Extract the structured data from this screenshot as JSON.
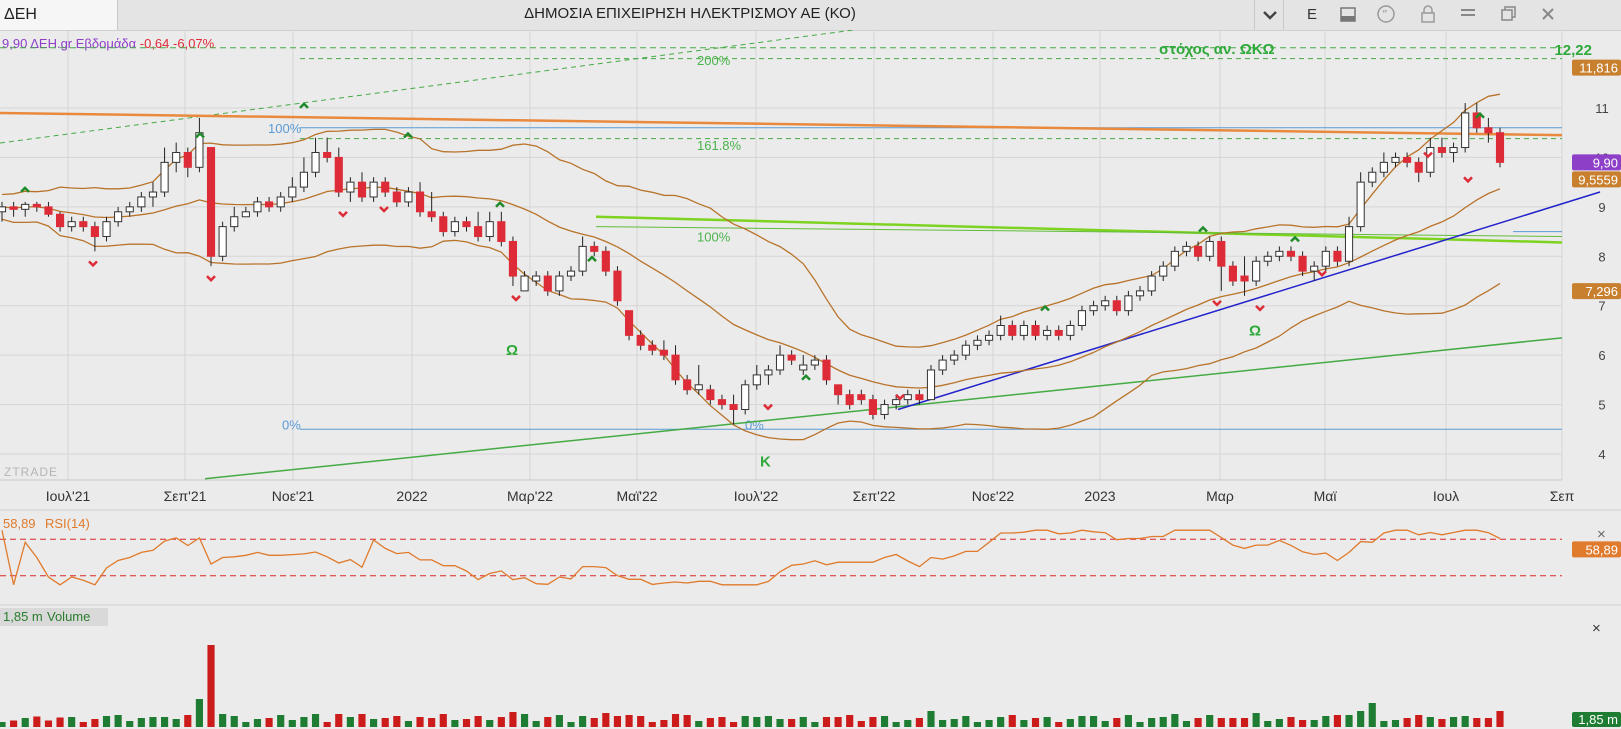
{
  "window": {
    "symbol": "ΔΕΗ",
    "title": "ΔΗΜΟΣΙΑ ΕΠΙΧΕΙΡΗΣΗ ΗΛΕΚΤΡΙΣΜΟΥ ΑΕ (ΚΟ)",
    "buttons": [
      "chevron-down-icon",
      "E",
      "panel-icon",
      "quote-icon",
      "lock-icon",
      "menu-icon",
      "restore-icon",
      "close-icon"
    ],
    "e_label": "E"
  },
  "info": {
    "price": "9,90",
    "source": "ΔΕΗ.gr",
    "period": "Εβδομάδα",
    "change": "-0,64",
    "change_pct": "-6,07%"
  },
  "colors": {
    "up": "#ffffff",
    "down": "#dd2c38",
    "bollinger": "#b8732a",
    "resistance": "#e9893d",
    "green_line": "#7ed321",
    "trend_blue": "#2222cc",
    "fib": "#5b9bd5",
    "rsi": "#e07a2c",
    "vol_up": "#1e7d32",
    "vol_down": "#cc1b1b"
  },
  "chart_data": {
    "type": "candlestick",
    "y_axis": {
      "min": 3.5,
      "max": 12.5,
      "ticks": [
        4,
        5,
        6,
        7,
        8,
        9,
        10,
        11
      ]
    },
    "x_axis": {
      "labels": [
        "Ιουλ'21",
        "Σεπ'21",
        "Νοε'21",
        "2022",
        "Μαρ'22",
        "Μαϊ'22",
        "Ιουλ'22",
        "Σεπ'22",
        "Νοε'22",
        "2023",
        "Μαρ",
        "Μαϊ",
        "Ιουλ",
        "Σεπ"
      ]
    },
    "weeks": [
      [
        "2021-06-18",
        8.9,
        9.1,
        8.7,
        9.0
      ],
      [
        "2021-06-25",
        9.0,
        9.1,
        8.8,
        8.95
      ],
      [
        "2021-07-02",
        8.95,
        9.1,
        8.8,
        9.05
      ],
      [
        "2021-07-09",
        9.05,
        9.1,
        8.9,
        9.0
      ],
      [
        "2021-07-16",
        9.0,
        9.1,
        8.8,
        8.85
      ],
      [
        "2021-07-23",
        8.85,
        8.9,
        8.5,
        8.6
      ],
      [
        "2021-07-30",
        8.6,
        8.8,
        8.5,
        8.7
      ],
      [
        "2021-08-06",
        8.7,
        8.8,
        8.5,
        8.6
      ],
      [
        "2021-08-13",
        8.6,
        8.7,
        8.1,
        8.4
      ],
      [
        "2021-08-20",
        8.4,
        8.8,
        8.3,
        8.7
      ],
      [
        "2021-08-27",
        8.7,
        9.0,
        8.6,
        8.9
      ],
      [
        "2021-09-03",
        8.9,
        9.1,
        8.8,
        9.0
      ],
      [
        "2021-09-10",
        9.0,
        9.3,
        8.9,
        9.2
      ],
      [
        "2021-09-17",
        9.2,
        9.5,
        9.0,
        9.3
      ],
      [
        "2021-09-24",
        9.3,
        10.2,
        9.2,
        9.9
      ],
      [
        "2021-10-01",
        9.9,
        10.3,
        9.7,
        10.1
      ],
      [
        "2021-10-08",
        10.1,
        10.2,
        9.6,
        9.8
      ],
      [
        "2021-10-15",
        9.8,
        10.8,
        9.7,
        10.5
      ],
      [
        "2021-10-22",
        10.2,
        10.2,
        7.8,
        8.0
      ],
      [
        "2021-10-29",
        8.0,
        8.7,
        7.9,
        8.6
      ],
      [
        "2021-11-05",
        8.6,
        9.0,
        8.5,
        8.8
      ],
      [
        "2021-11-12",
        8.8,
        9.0,
        8.8,
        8.9
      ],
      [
        "2021-11-19",
        8.9,
        9.2,
        8.8,
        9.1
      ],
      [
        "2021-11-26",
        9.1,
        9.2,
        8.9,
        9.0
      ],
      [
        "2021-12-03",
        9.0,
        9.3,
        8.9,
        9.2
      ],
      [
        "2021-12-10",
        9.2,
        9.6,
        9.1,
        9.4
      ],
      [
        "2021-12-17",
        9.4,
        10.0,
        9.3,
        9.7
      ],
      [
        "2021-12-24",
        9.7,
        10.4,
        9.6,
        10.1
      ],
      [
        "2021-12-31",
        10.1,
        10.4,
        9.9,
        10.0
      ],
      [
        "2022-01-07",
        10.0,
        10.2,
        9.2,
        9.3
      ],
      [
        "2022-01-14",
        9.3,
        9.6,
        9.1,
        9.5
      ],
      [
        "2022-01-21",
        9.5,
        9.7,
        9.1,
        9.2
      ],
      [
        "2022-01-28",
        9.2,
        9.6,
        9.1,
        9.5
      ],
      [
        "2022-02-04",
        9.5,
        9.6,
        9.2,
        9.3
      ],
      [
        "2022-02-11",
        9.3,
        9.4,
        9.0,
        9.1
      ],
      [
        "2022-02-18",
        9.1,
        9.4,
        9.0,
        9.3
      ],
      [
        "2022-02-25",
        9.3,
        9.5,
        8.8,
        8.9
      ],
      [
        "2022-03-04",
        8.9,
        9.3,
        8.7,
        8.8
      ],
      [
        "2022-03-11",
        8.8,
        8.9,
        8.4,
        8.5
      ],
      [
        "2022-03-18",
        8.5,
        8.8,
        8.4,
        8.7
      ],
      [
        "2022-03-25",
        8.7,
        8.8,
        8.5,
        8.6
      ],
      [
        "2022-04-01",
        8.6,
        8.9,
        8.3,
        8.4
      ],
      [
        "2022-04-08",
        8.4,
        8.9,
        8.3,
        8.7
      ],
      [
        "2022-04-15",
        8.7,
        8.9,
        8.2,
        8.3
      ],
      [
        "2022-04-22",
        8.3,
        8.4,
        7.4,
        7.6
      ],
      [
        "2022-04-29",
        7.3,
        7.7,
        7.3,
        7.6
      ],
      [
        "2022-05-06",
        7.5,
        7.7,
        7.4,
        7.6
      ],
      [
        "2022-05-13",
        7.6,
        7.7,
        7.2,
        7.3
      ],
      [
        "2022-05-20",
        7.3,
        7.7,
        7.2,
        7.6
      ],
      [
        "2022-05-27",
        7.6,
        7.8,
        7.5,
        7.7
      ],
      [
        "2022-06-03",
        7.7,
        8.4,
        7.6,
        8.2
      ],
      [
        "2022-06-10",
        8.2,
        8.3,
        8.0,
        8.1
      ],
      [
        "2022-06-17",
        8.1,
        8.2,
        7.6,
        7.7
      ],
      [
        "2022-06-24",
        7.7,
        7.8,
        7.0,
        7.1
      ],
      [
        "2022-07-01",
        6.9,
        6.9,
        6.3,
        6.4
      ],
      [
        "2022-07-08",
        6.4,
        6.5,
        6.1,
        6.2
      ],
      [
        "2022-07-15",
        6.2,
        6.3,
        6.0,
        6.1
      ],
      [
        "2022-07-22",
        6.1,
        6.3,
        5.9,
        6.0
      ],
      [
        "2022-07-29",
        6.0,
        6.2,
        5.4,
        5.5
      ],
      [
        "2022-08-05",
        5.5,
        5.6,
        5.2,
        5.3
      ],
      [
        "2022-08-12",
        5.3,
        5.8,
        5.2,
        5.4
      ],
      [
        "2022-08-19",
        5.3,
        5.4,
        5.0,
        5.1
      ],
      [
        "2022-08-26",
        5.1,
        5.2,
        4.9,
        5.0
      ],
      [
        "2022-09-02",
        5.0,
        5.2,
        4.6,
        4.9
      ],
      [
        "2022-09-09",
        4.9,
        5.5,
        4.8,
        5.4
      ],
      [
        "2022-09-16",
        5.4,
        5.8,
        5.3,
        5.6
      ],
      [
        "2022-09-23",
        5.6,
        5.8,
        5.4,
        5.7
      ],
      [
        "2022-09-30",
        5.7,
        6.2,
        5.6,
        6.0
      ],
      [
        "2022-10-07",
        6.0,
        6.1,
        5.8,
        5.9
      ],
      [
        "2022-10-14",
        5.7,
        6.0,
        5.6,
        5.8
      ],
      [
        "2022-10-21",
        5.8,
        6.0,
        5.7,
        5.9
      ],
      [
        "2022-10-28",
        5.9,
        6.0,
        5.4,
        5.5
      ],
      [
        "2022-11-04",
        5.4,
        5.3,
        5.0,
        5.2
      ],
      [
        "2022-11-11",
        5.2,
        5.3,
        4.9,
        5.0
      ],
      [
        "2022-11-18",
        5.2,
        5.3,
        5.0,
        5.1
      ],
      [
        "2022-11-25",
        5.1,
        5.2,
        4.7,
        4.8
      ],
      [
        "2022-12-02",
        4.8,
        5.1,
        4.7,
        5.0
      ],
      [
        "2022-12-09",
        5.0,
        5.2,
        4.9,
        5.1
      ],
      [
        "2022-12-16",
        5.1,
        5.3,
        5.0,
        5.2
      ],
      [
        "2022-12-23",
        5.2,
        5.3,
        5.0,
        5.1
      ],
      [
        "2022-12-30",
        5.1,
        5.8,
        5.1,
        5.7
      ],
      [
        "2023-01-06",
        5.7,
        6.0,
        5.6,
        5.9
      ],
      [
        "2023-01-13",
        5.9,
        6.1,
        5.8,
        6.0
      ],
      [
        "2023-01-20",
        6.0,
        6.3,
        5.9,
        6.2
      ],
      [
        "2023-01-27",
        6.2,
        6.4,
        6.1,
        6.3
      ],
      [
        "2023-02-03",
        6.3,
        6.5,
        6.2,
        6.4
      ],
      [
        "2023-02-10",
        6.4,
        6.8,
        6.3,
        6.6
      ],
      [
        "2023-02-17",
        6.6,
        6.7,
        6.3,
        6.4
      ],
      [
        "2023-02-24",
        6.4,
        6.7,
        6.3,
        6.6
      ],
      [
        "2023-03-03",
        6.6,
        6.7,
        6.3,
        6.4
      ],
      [
        "2023-03-10",
        6.4,
        6.6,
        6.3,
        6.5
      ],
      [
        "2023-03-17",
        6.5,
        6.6,
        6.3,
        6.4
      ],
      [
        "2023-03-24",
        6.4,
        6.7,
        6.3,
        6.6
      ],
      [
        "2023-03-31",
        6.6,
        7.0,
        6.5,
        6.9
      ],
      [
        "2023-04-07",
        6.9,
        7.1,
        6.8,
        7.0
      ],
      [
        "2023-04-14",
        7.0,
        7.2,
        6.9,
        7.1
      ],
      [
        "2023-04-21",
        7.1,
        7.2,
        6.8,
        6.9
      ],
      [
        "2023-04-28",
        6.9,
        7.3,
        6.8,
        7.2
      ],
      [
        "2023-05-05",
        7.2,
        7.4,
        7.1,
        7.3
      ],
      [
        "2023-05-12",
        7.3,
        7.7,
        7.2,
        7.6
      ],
      [
        "2023-05-19",
        7.6,
        7.9,
        7.5,
        7.8
      ],
      [
        "2023-05-26",
        7.8,
        8.2,
        7.7,
        8.1
      ],
      [
        "2023-06-02",
        8.1,
        8.3,
        8.0,
        8.2
      ],
      [
        "2023-06-09",
        8.2,
        8.3,
        7.9,
        8.0
      ],
      [
        "2023-06-16",
        8.0,
        8.4,
        7.9,
        8.3
      ],
      [
        "2023-06-23",
        8.3,
        8.4,
        7.3,
        7.8
      ],
      [
        "2023-06-30",
        7.8,
        7.9,
        7.4,
        7.5
      ],
      [
        "2023-07-07",
        7.6,
        8.0,
        7.2,
        7.5
      ],
      [
        "2023-07-14",
        7.5,
        8.0,
        7.4,
        7.9
      ],
      [
        "2023-07-21",
        7.9,
        8.1,
        7.8,
        8.0
      ],
      [
        "2023-07-28",
        8.0,
        8.2,
        7.9,
        8.1
      ],
      [
        "2023-08-04",
        8.1,
        8.2,
        7.9,
        8.0
      ],
      [
        "2023-08-11",
        8.0,
        8.1,
        7.6,
        7.7
      ],
      [
        "2023-08-18",
        7.7,
        7.9,
        7.5,
        7.8
      ],
      [
        "2023-08-25",
        7.8,
        8.2,
        7.7,
        8.1
      ],
      [
        "2023-09-01",
        8.1,
        8.2,
        7.8,
        7.9
      ],
      [
        "2023-09-08",
        7.9,
        8.8,
        7.8,
        8.6
      ],
      [
        "2023-09-15",
        8.6,
        9.7,
        8.5,
        9.5
      ],
      [
        "2023-09-22",
        9.5,
        9.8,
        9.4,
        9.7
      ],
      [
        "2023-09-29",
        9.7,
        10.1,
        9.6,
        9.9
      ],
      [
        "2023-10-06",
        9.9,
        10.1,
        9.8,
        10.0
      ],
      [
        "2023-10-13",
        10.0,
        10.1,
        9.8,
        9.9
      ],
      [
        "2023-10-20",
        9.9,
        10.0,
        9.5,
        9.7
      ],
      [
        "2023-10-27",
        9.7,
        10.4,
        9.6,
        10.2
      ],
      [
        "2023-11-03",
        10.2,
        10.4,
        10.0,
        10.1
      ],
      [
        "2023-11-10",
        10.1,
        10.3,
        9.9,
        10.2
      ],
      [
        "2023-11-17",
        10.2,
        11.1,
        10.1,
        10.9
      ],
      [
        "2023-11-24",
        10.9,
        11.1,
        10.5,
        10.6
      ],
      [
        "2023-12-01",
        10.6,
        10.8,
        10.3,
        10.5
      ],
      [
        "2023-12-08",
        10.5,
        10.6,
        9.8,
        9.9
      ]
    ],
    "price_labels": [
      {
        "price": 11.816,
        "text": "11,816",
        "color": "#c8802f"
      },
      {
        "price": 9.9,
        "text": "9,90",
        "color": "#8d3fc8"
      },
      {
        "price": 9.5559,
        "text": "9,5559",
        "color": "#c8802f"
      },
      {
        "price": 7.296,
        "text": "7,296",
        "color": "#c8802f"
      }
    ],
    "fib_labels": [
      "200%",
      "161.8%",
      "100%",
      "0%"
    ],
    "right_scale_labels": [
      "11",
      "10",
      "9",
      "8",
      "7",
      "6",
      "5",
      "4"
    ],
    "annotations": {
      "target_label": "στόχος αν. ΩΚΩ",
      "target_value": "12,22",
      "omega": "Ω",
      "kappa": "Κ",
      "watermark": "ZTRADE"
    },
    "rsi": {
      "value": "58,89",
      "label": "RSI(14)",
      "upper": 70,
      "lower": 30
    },
    "volume": {
      "value": "1,85 m",
      "label": "Volume"
    }
  }
}
